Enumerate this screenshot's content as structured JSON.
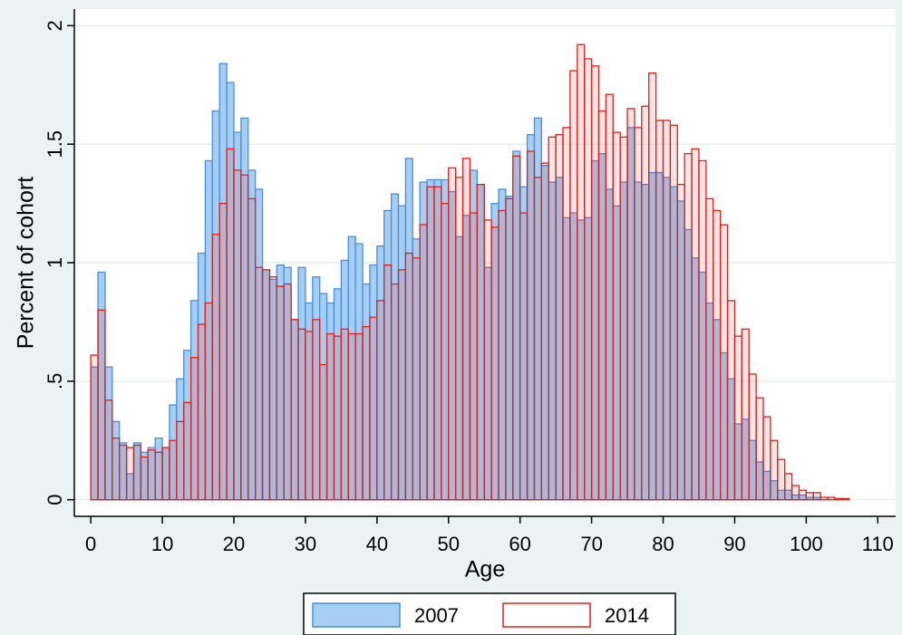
{
  "chart_data": {
    "type": "histogram",
    "x_label": "Age",
    "y_label": "Percent of cohort",
    "bins": [
      0,
      1,
      2,
      3,
      4,
      5,
      6,
      7,
      8,
      9,
      10,
      11,
      12,
      13,
      14,
      15,
      16,
      17,
      18,
      19,
      20,
      21,
      22,
      23,
      24,
      25,
      26,
      27,
      28,
      29,
      30,
      31,
      32,
      33,
      34,
      35,
      36,
      37,
      38,
      39,
      40,
      41,
      42,
      43,
      44,
      45,
      46,
      47,
      48,
      49,
      50,
      51,
      52,
      53,
      54,
      55,
      56,
      57,
      58,
      59,
      60,
      61,
      62,
      63,
      64,
      65,
      66,
      67,
      68,
      69,
      70,
      71,
      72,
      73,
      74,
      75,
      76,
      77,
      78,
      79,
      80,
      81,
      82,
      83,
      84,
      85,
      86,
      87,
      88,
      89,
      90,
      91,
      92,
      93,
      94,
      95,
      96,
      97,
      98,
      99,
      100,
      101,
      102,
      103,
      104,
      105,
      106
    ],
    "series": [
      {
        "name": "2007",
        "color": "#4a8fd6",
        "fill": "#a6cdf3",
        "values": [
          0.56,
          0.96,
          0.56,
          0.33,
          0.24,
          0.11,
          0.24,
          0.2,
          0.22,
          0.26,
          0.22,
          0.4,
          0.51,
          0.63,
          0.84,
          1.04,
          1.43,
          1.64,
          1.84,
          1.76,
          1.55,
          1.61,
          1.39,
          1.31,
          0.97,
          0.93,
          0.99,
          0.98,
          0.76,
          0.98,
          0.83,
          0.94,
          0.87,
          0.83,
          0.89,
          1.01,
          1.11,
          1.08,
          0.91,
          0.99,
          1.07,
          1.22,
          1.29,
          1.24,
          1.44,
          1.1,
          1.34,
          1.35,
          1.35,
          1.35,
          1.3,
          1.11,
          1.2,
          1.39,
          1.33,
          0.98,
          1.25,
          1.31,
          1.28,
          1.47,
          1.32,
          1.54,
          1.61,
          1.41,
          1.34,
          1.36,
          1.19,
          1.21,
          1.18,
          1.19,
          1.43,
          1.46,
          1.31,
          1.24,
          1.34,
          1.57,
          1.34,
          1.33,
          1.38,
          1.38,
          1.36,
          1.32,
          1.26,
          1.14,
          1.02,
          0.96,
          0.83,
          0.76,
          0.62,
          0.51,
          0.32,
          0.34,
          0.25,
          0.16,
          0.12,
          0.08,
          0.04,
          0.04,
          0.02,
          0.02,
          0.01,
          0.01,
          0,
          0,
          0,
          0
        ]
      },
      {
        "name": "2014",
        "color": "#e0201b",
        "fill": "#e0201b",
        "values": [
          0.61,
          0.8,
          0.42,
          0.26,
          0.23,
          0.22,
          0.23,
          0.18,
          0.21,
          0.2,
          0.22,
          0.25,
          0.33,
          0.41,
          0.6,
          0.74,
          0.83,
          1.12,
          1.25,
          1.48,
          1.39,
          1.37,
          1.27,
          0.98,
          0.97,
          0.94,
          0.9,
          0.91,
          0.76,
          0.72,
          0.71,
          0.76,
          0.57,
          0.7,
          0.69,
          0.72,
          0.7,
          0.7,
          0.73,
          0.77,
          0.84,
          0.99,
          0.91,
          0.97,
          1.04,
          1.02,
          1.16,
          1.32,
          1.32,
          1.25,
          1.4,
          1.36,
          1.44,
          1.21,
          1.33,
          1.18,
          1.15,
          1.22,
          1.27,
          1.45,
          1.21,
          1.47,
          1.36,
          1.42,
          1.53,
          1.54,
          1.57,
          1.81,
          1.92,
          1.86,
          1.83,
          1.64,
          1.71,
          1.55,
          1.53,
          1.65,
          1.57,
          1.66,
          1.8,
          1.6,
          1.6,
          1.58,
          1.33,
          1.46,
          1.48,
          1.43,
          1.27,
          1.22,
          1.16,
          0.84,
          0.69,
          0.72,
          0.53,
          0.43,
          0.35,
          0.25,
          0.17,
          0.11,
          0.06,
          0.04,
          0.03,
          0.03,
          0.01,
          0.01,
          0.005,
          0.005
        ]
      }
    ],
    "xlim": [
      -2.3,
      112.5
    ],
    "ylim": [
      -0.07,
      2.07
    ],
    "xticks": [
      0,
      10,
      20,
      30,
      40,
      50,
      60,
      70,
      80,
      90,
      100,
      110
    ],
    "yticks": [
      0,
      {
        "value": 0.5,
        "label": ".5"
      },
      1,
      1.5,
      2
    ],
    "grid": true,
    "legend": "bottom"
  }
}
